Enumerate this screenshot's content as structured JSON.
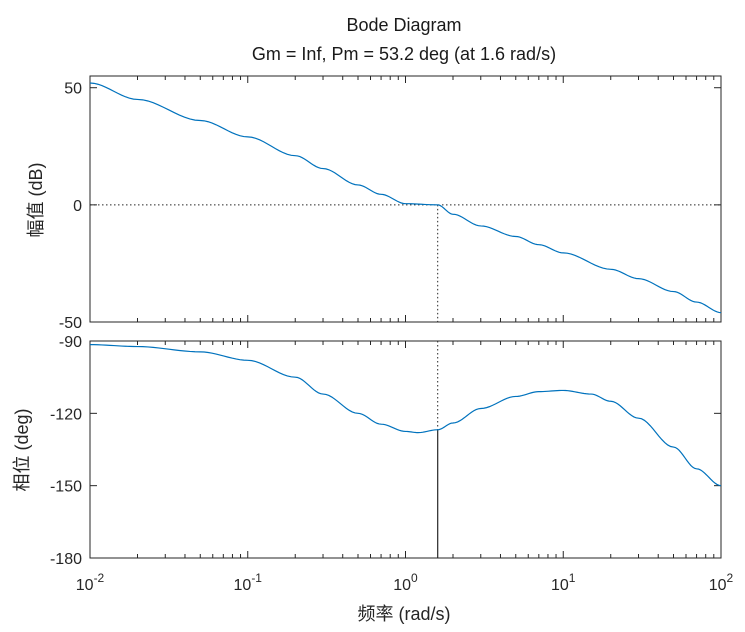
{
  "chart_data": {
    "type": "line",
    "title": "Bode Diagram",
    "subtitle": "Gm = Inf,  Pm = 53.2 deg (at 1.6 rad/s)",
    "xlabel": "频率  (rad/s)",
    "xscale": "log",
    "xlim": [
      0.01,
      100
    ],
    "x_ticks": [
      {
        "base": "10",
        "exp": "-2",
        "value": 0.01
      },
      {
        "base": "10",
        "exp": "-1",
        "value": 0.1
      },
      {
        "base": "10",
        "exp": "0",
        "value": 1
      },
      {
        "base": "10",
        "exp": "1",
        "value": 10
      },
      {
        "base": "10",
        "exp": "2",
        "value": 100
      }
    ],
    "line_color": "#0072bd",
    "crossover_frequency": 1.6,
    "phase_at_crossover": -126.8,
    "magnitude": {
      "ylabel": "幅值 (dB)",
      "ylim": [
        -50,
        55
      ],
      "y_ticks": [
        {
          "label": "50",
          "value": 50
        },
        {
          "label": "0",
          "value": 0
        },
        {
          "label": "-50",
          "value": -50
        }
      ],
      "zero_line": 0,
      "x": [
        0.01,
        0.02,
        0.05,
        0.1,
        0.2,
        0.3,
        0.5,
        0.7,
        1,
        1.6,
        2,
        3,
        5,
        7,
        10,
        20,
        30,
        50,
        70,
        100
      ],
      "y": [
        52,
        45,
        36,
        29,
        21,
        15.5,
        8.5,
        4.5,
        0.5,
        0,
        -4,
        -9,
        -13.5,
        -17,
        -20.5,
        -27.5,
        -31.5,
        -37,
        -41.5,
        -46
      ]
    },
    "phase": {
      "ylabel": "相位 (deg)",
      "ylim": [
        -180,
        -90
      ],
      "y_ticks": [
        {
          "label": "-90",
          "value": -90
        },
        {
          "label": "-120",
          "value": -120
        },
        {
          "label": "-150",
          "value": -150
        },
        {
          "label": "-180",
          "value": -180
        }
      ],
      "x": [
        0.01,
        0.02,
        0.05,
        0.1,
        0.2,
        0.3,
        0.5,
        0.7,
        1,
        1.2,
        1.6,
        2,
        3,
        5,
        7,
        10,
        15,
        20,
        30,
        50,
        70,
        100
      ],
      "y": [
        -91.5,
        -92.3,
        -94.5,
        -98,
        -105,
        -112,
        -120,
        -124.5,
        -127.5,
        -128,
        -126.8,
        -124,
        -118,
        -113,
        -111,
        -110.5,
        -112,
        -115,
        -122,
        -134,
        -143,
        -150
      ]
    }
  }
}
